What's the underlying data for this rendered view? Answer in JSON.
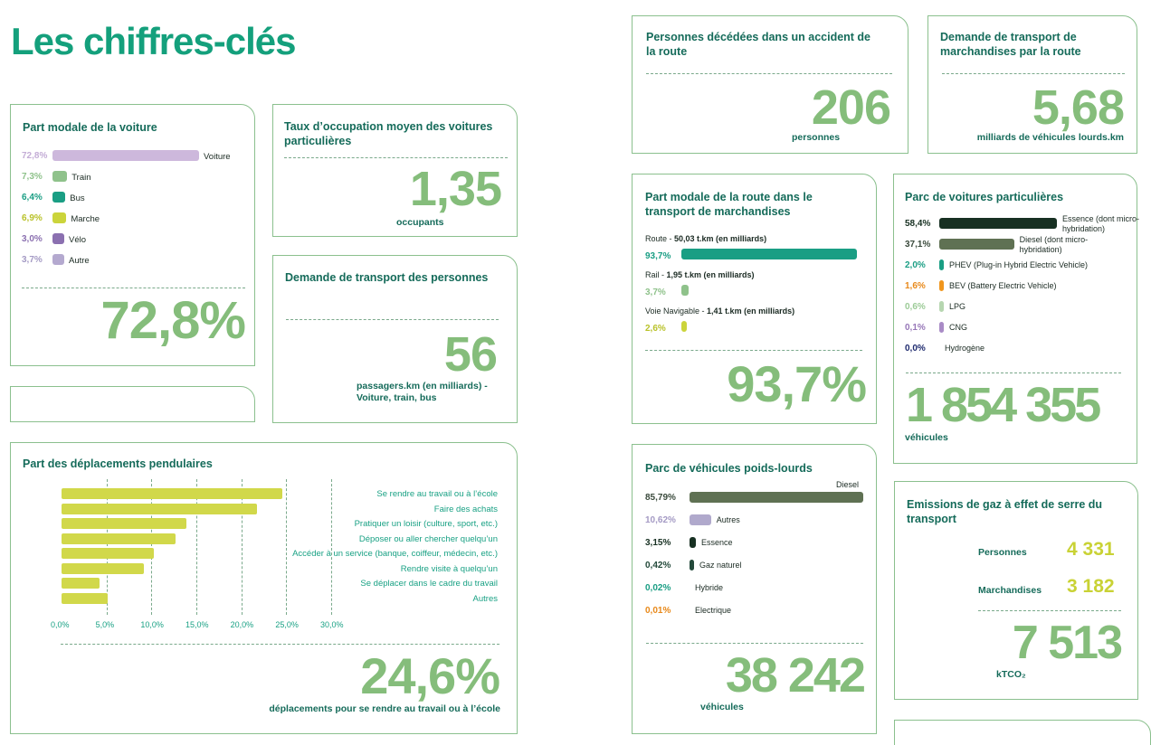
{
  "page": {
    "title": "Les chiffres-clés"
  },
  "voiture": {
    "title": "Part modale de la voiture",
    "items": [
      {
        "pct": "72,8%",
        "label": "Voiture",
        "value": 72.8,
        "color": "#cdb8dc",
        "pctColor": "#c4add6"
      },
      {
        "pct": "7,3%",
        "label": "Train",
        "value": 7.3,
        "color": "#8fc28b",
        "pctColor": "#8fc28b"
      },
      {
        "pct": "6,4%",
        "label": "Bus",
        "value": 6.4,
        "color": "#1a9e84",
        "pctColor": "#1a9e84"
      },
      {
        "pct": "6,9%",
        "label": "Marche",
        "value": 6.9,
        "color": "#cbd43b",
        "pctColor": "#b9c22a"
      },
      {
        "pct": "3,0%",
        "label": "Vélo",
        "value": 3.0,
        "color": "#8b70b0",
        "pctColor": "#8b70b0"
      },
      {
        "pct": "3,7%",
        "label": "Autre",
        "value": 3.7,
        "color": "#b4a9cf",
        "pctColor": "#a49ac4"
      }
    ],
    "big": "72,8%"
  },
  "occupation": {
    "title": "Taux d’occupation moyen des voitures particulières",
    "big": "1,35",
    "unit": "occupants"
  },
  "personnes": {
    "title": "Demande de transport des personnes",
    "big": "56",
    "unit": "passagers.km (en milliards) - Voiture, train, bus"
  },
  "deces": {
    "title": "Personnes décédées dans un accident de la route",
    "big": "206",
    "unit": "personnes"
  },
  "marchandises": {
    "title": "Demande de transport de marchandises par la route",
    "big": "5,68",
    "unit": "milliards de véhicules lourds.km"
  },
  "route": {
    "title": "Part modale de la route dans le transport de marchandises",
    "items": [
      {
        "name": "Route",
        "detail": "50,03 t.km (en milliards)",
        "pct": "93,7%",
        "value": 93.7,
        "color": "#1a9e84",
        "pctColor": "#1a9e84"
      },
      {
        "name": "Rail",
        "detail": "1,95 t.km (en milliards)",
        "pct": "3,7%",
        "value": 3.7,
        "color": "#8fc28b",
        "pctColor": "#8fc28b"
      },
      {
        "name": "Voie Navigable",
        "detail": "1,41 t.km (en milliards)",
        "pct": "2,6%",
        "value": 2.6,
        "color": "#cbd43b",
        "pctColor": "#b9c22a"
      }
    ],
    "big": "93,7%"
  },
  "parc": {
    "title": "Parc de voitures particulières",
    "items": [
      {
        "pct": "58,4%",
        "label": "Essence (dont micro-hybridation)",
        "value": 58.4,
        "color": "#173022",
        "pctColor": "#173022"
      },
      {
        "pct": "37,1%",
        "label": "Diesel (dont micro-hybridation)",
        "value": 37.1,
        "color": "#5f7153",
        "pctColor": "#3a4a3c"
      },
      {
        "pct": "2,0%",
        "label": "PHEV (Plug-in Hybrid Electric Vehicle)",
        "value": 2.0,
        "color": "#1a9e84",
        "pctColor": "#1a9e84"
      },
      {
        "pct": "1,6%",
        "label": "BEV (Battery Electric Vehicle)",
        "value": 1.6,
        "color": "#f0961e",
        "pctColor": "#e8891a"
      },
      {
        "pct": "0,6%",
        "label": "LPG",
        "value": 0.6,
        "color": "#b6d6b0",
        "pctColor": "#9ccb97"
      },
      {
        "pct": "0,1%",
        "label": "CNG",
        "value": 0.1,
        "color": "#a98bc6",
        "pctColor": "#9777b8"
      },
      {
        "pct": "0,0%",
        "label": "Hydrogène",
        "value": 0.0,
        "color": "#1e2a6e",
        "pctColor": "#1e2a6e"
      }
    ],
    "big": "1 854 355",
    "unit": "véhicules"
  },
  "pendulaires": {
    "title": "Part des déplacements pendulaires",
    "chart_data": {
      "type": "bar",
      "orientation": "horizontal",
      "categories": [
        "Se rendre au travail ou à l’école",
        "Faire des achats",
        "Pratiquer un loisir (culture, sport, etc.)",
        "Déposer ou aller chercher quelqu’un",
        "Accéder à un service (banque, coiffeur, médecin, etc.)",
        "Rendre visite à  quelqu’un",
        "Se déplacer dans le cadre du travail",
        "Autres"
      ],
      "values": [
        24.6,
        21.7,
        13.9,
        12.7,
        10.3,
        9.2,
        4.2,
        5.1
      ],
      "xlim": [
        0,
        30
      ],
      "ticks": [
        "0,0%",
        "5,0%",
        "10,0%",
        "15,0%",
        "20,0%",
        "25,0%",
        "30,0%"
      ],
      "color": "#d1d84a"
    },
    "big": "24,6%",
    "unit": "déplacements pour se rendre au travail ou à l’école"
  },
  "poidslourds": {
    "title": "Parc de véhicules poids-lourds",
    "items": [
      {
        "pct": "85,79%",
        "label": "Diesel",
        "value": 85.79,
        "color": "#5f7153",
        "pctColor": "#3a4a3c"
      },
      {
        "pct": "10,62%",
        "label": "Autres",
        "value": 10.62,
        "color": "#b0a9cc",
        "pctColor": "#a49ac4"
      },
      {
        "pct": "3,15%",
        "label": "Essence",
        "value": 3.15,
        "color": "#173022",
        "pctColor": "#173022"
      },
      {
        "pct": "0,42%",
        "label": "Gaz naturel",
        "value": 0.42,
        "color": "#23493a",
        "pctColor": "#23493a"
      },
      {
        "pct": "0,02%",
        "label": "Hybride",
        "value": 0.02,
        "color": "#1a9e84",
        "pctColor": "#1a9e84"
      },
      {
        "pct": "0,01%",
        "label": "Electrique",
        "value": 0.01,
        "color": "#f0961e",
        "pctColor": "#e8891a"
      }
    ],
    "big": "38 242",
    "unit": "véhicules"
  },
  "emissions": {
    "title": "Emissions de gaz à effet de serre du transport",
    "rows": [
      {
        "label": "Personnes",
        "value": "4 331"
      },
      {
        "label": "Marchandises",
        "value": "3 182"
      }
    ],
    "big": "7 513",
    "unit": "kTCO₂"
  }
}
